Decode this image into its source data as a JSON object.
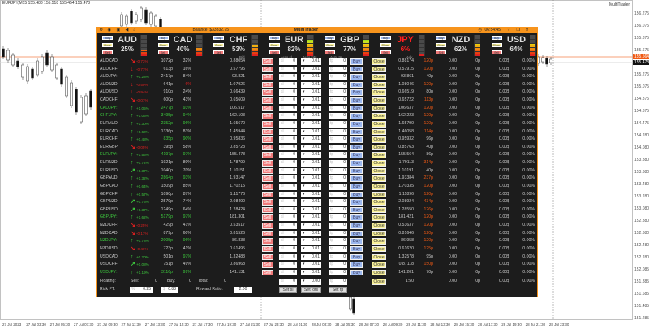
{
  "chart": {
    "symbol_line": "EURJPY,M15  155.488 155.518 155.454 155.478",
    "indicator_label": "MultiTrader",
    "ask_price_tag": "155.564",
    "bid_price_tag": "155.478",
    "price_labels": [
      "156.275",
      "156.075",
      "155.875",
      "155.675",
      "155.275",
      "155.075",
      "154.875",
      "154.675",
      "154.475",
      "154.280",
      "154.080",
      "153.880",
      "153.680",
      "153.480",
      "153.280",
      "153.080",
      "152.880",
      "152.680",
      "152.480",
      "152.280",
      "152.085",
      "151.885",
      "151.685",
      "151.485",
      "151.285"
    ],
    "time_labels": [
      "27 Jul 2023",
      "27 Jul 03:30",
      "27 Jul 05:30",
      "27 Jul 07:30",
      "27 Jul 09:30",
      "27 Jul 11:30",
      "27 Jul 13:30",
      "27 Jul 15:30",
      "27 Jul 17:30",
      "27 Jul 19:30",
      "27 Jul 21:30",
      "27 Jul 23:30",
      "28 Jul 01:30",
      "28 Jul 03:30",
      "28 Jul 05:30",
      "28 Jul 07:30",
      "28 Jul 09:30",
      "28 Jul 11:30",
      "28 Jul 13:30",
      "28 Jul 15:30",
      "28 Jul 17:30",
      "28 Jul 19:30",
      "28 Jul 21:30",
      "28 Jul 23:30"
    ],
    "colors": {
      "ask_line": "#f7a27a",
      "bid_line": "#d8d8d8",
      "ask_tag": "#f05a14",
      "bid_tag": "#111111"
    }
  },
  "panel": {
    "title": "MultiTrader",
    "balance": "Balance: $33332.75",
    "clock": "06:54:45",
    "help": "?",
    "toolbar_icons": [
      "settings-icon",
      "eye-icon",
      "chat-icon",
      "sound-icon",
      "alert-icon"
    ],
    "accent": "#f7941d",
    "mini_buttons": {
      "buy": "Buy",
      "close": "Close",
      "sell": "Sell"
    },
    "currencies": [
      {
        "name": "AUD",
        "level": "25%",
        "value": 25
      },
      {
        "name": "CAD",
        "level": "40%",
        "value": 40
      },
      {
        "name": "CHF",
        "level": "53%",
        "value": 53
      },
      {
        "name": "EUR",
        "level": "82%",
        "value": 82
      },
      {
        "name": "GBP",
        "level": "77%",
        "value": 77
      },
      {
        "name": "JPY",
        "level": "6%",
        "value": 6,
        "weak": true
      },
      {
        "name": "NZD",
        "level": "62%",
        "value": 62
      },
      {
        "name": "USD",
        "level": "64%",
        "value": 64
      }
    ],
    "headers": {
      "bid": "Bid",
      "auto_sl": "Auto sl",
      "auto_lots": "Auto lots",
      "auto_tp": "Auto tp",
      "ask": "Ask"
    },
    "row_defaults": {
      "sell": "Sell",
      "buy": "Buy",
      "close": "Close",
      "sl_ph": "sl",
      "tp_ph": "tp",
      "sl": "0",
      "tp": "0",
      "lots": "0.01",
      "spread_val": "0.00",
      "pos_pips": "0p",
      "profit": "0.00$",
      "profit_pct": "0.00%"
    },
    "rows": [
      {
        "pair": "AUDCAD:",
        "dir": "↘",
        "chg": "-0.73%",
        "pips": "1072p",
        "pct": "32%",
        "bid": "0.88054",
        "ask": "0.88174",
        "spread": "120p",
        "hot": true
      },
      {
        "pair": "AUDCHF:",
        "dir": "↓",
        "chg": "-0.77%",
        "pips": "613p",
        "pct": "16%",
        "bid": "0.57795",
        "ask": "0.57915",
        "spread": "120p",
        "hot": true
      },
      {
        "pair": "AUDJPY:",
        "dir": "↑",
        "chg": "+0.28%",
        "pips": "2417p",
        "pct": "84%",
        "bid": "93.821",
        "ask": "93.861",
        "spread": "40p"
      },
      {
        "pair": "AUDNZD:",
        "dir": "↓",
        "chg": "-0.50%",
        "pips": "641p",
        "pct": "6%",
        "pct_low": true,
        "bid": "1.07926",
        "ask": "1.08046",
        "spread": "120p",
        "hot": true
      },
      {
        "pair": "AUDUSD:",
        "dir": "↓",
        "chg": "-0.94%",
        "pips": "910p",
        "pct": "24%",
        "bid": "0.66439",
        "ask": "0.66519",
        "spread": "80p"
      },
      {
        "pair": "CADCHF:",
        "dir": "↘",
        "chg": "-0.07%",
        "pips": "600p",
        "pct": "43%",
        "bid": "0.65609",
        "ask": "0.65722",
        "spread": "113p",
        "hot": true
      },
      {
        "pair": "CADJPY:",
        "dir": "↑",
        "chg": "+1.05%",
        "pips": "2477p",
        "pct": "93%",
        "bid": "106.517",
        "ask": "106.637",
        "spread": "120p",
        "hot": true,
        "strong": true,
        "pips_hi": true,
        "pct_hi": true
      },
      {
        "pair": "CHFJPY:",
        "dir": "↑",
        "chg": "+1.06%",
        "pips": "3495p",
        "pct": "94%",
        "bid": "162.103",
        "ask": "162.223",
        "spread": "120p",
        "hot": true,
        "strong": true,
        "pips_hi": true,
        "pct_hi": true
      },
      {
        "pair": "EURAUD:",
        "dir": "↑",
        "chg": "+1.30%",
        "pips": "2352p",
        "pct": "96%",
        "bid": "1.65670",
        "ask": "1.65790",
        "spread": "120p",
        "hot": true,
        "pips_hi": true,
        "pct_hi": true
      },
      {
        "pair": "EURCAD:",
        "dir": "↑",
        "chg": "+0.60%",
        "pips": "1336p",
        "pct": "83%",
        "bid": "1.45944",
        "ask": "1.46058",
        "spread": "114p",
        "hot": true
      },
      {
        "pair": "EURCHF:",
        "dir": "↑",
        "chg": "+0.48%",
        "pips": "835p",
        "pct": "90%",
        "bid": "0.95836",
        "ask": "0.95932",
        "spread": "96p",
        "pips_hi": true,
        "pct_hi": true
      },
      {
        "pair": "EURGBP:",
        "dir": "↘",
        "chg": "-0.05%",
        "pips": "395p",
        "pct": "58%",
        "bid": "0.85723",
        "ask": "0.85763",
        "spread": "40p"
      },
      {
        "pair": "EURJPY:",
        "dir": "↑",
        "chg": "+1.56%",
        "pips": "4197p",
        "pct": "97%",
        "bid": "155.478",
        "ask": "155.564",
        "spread": "86p",
        "strong": true,
        "pips_hi": true,
        "pct_hi": true
      },
      {
        "pair": "EURNZD:",
        "dir": "↑",
        "chg": "+0.72%",
        "pips": "1921p",
        "pct": "80%",
        "bid": "1.78799",
        "ask": "1.79113",
        "spread": "314p",
        "hot": true
      },
      {
        "pair": "EURUSD:",
        "dir": "↗",
        "chg": "+0.37%",
        "pips": "1040p",
        "pct": "70%",
        "bid": "1.10151",
        "ask": "1.10191",
        "spread": "40p"
      },
      {
        "pair": "GBPAUD:",
        "dir": "↑",
        "chg": "+1.32%",
        "pips": "2864p",
        "pct": "93%",
        "bid": "1.93147",
        "ask": "1.93384",
        "spread": "237p",
        "hot": true,
        "pips_hi": true,
        "pct_hi": true
      },
      {
        "pair": "GBPCAD:",
        "dir": "↑",
        "chg": "+0.64%",
        "pips": "1509p",
        "pct": "85%",
        "bid": "1.70215",
        "ask": "1.70335",
        "spread": "120p",
        "hot": true
      },
      {
        "pair": "GBPCHF:",
        "dir": "↑",
        "chg": "+0.57%",
        "pips": "1090p",
        "pct": "87%",
        "bid": "1.11776",
        "ask": "1.11896",
        "spread": "120p",
        "hot": true
      },
      {
        "pair": "GBPNZD:",
        "dir": "↗",
        "chg": "+0.76%",
        "pips": "2579p",
        "pct": "74%",
        "bid": "2.08490",
        "ask": "2.08924",
        "spread": "434p",
        "hot": true
      },
      {
        "pair": "GBPUSD:",
        "dir": "↗",
        "chg": "+0.37%",
        "pips": "1249p",
        "pct": "64%",
        "bid": "1.28424",
        "ask": "1.28550",
        "spread": "126p",
        "hot": true
      },
      {
        "pair": "GBPJPY:",
        "dir": "↑",
        "chg": "+1.62%",
        "pips": "5179p",
        "pct": "97%",
        "bid": "181.301",
        "ask": "181.421",
        "spread": "120p",
        "hot": true,
        "strong": true,
        "pips_hi": true,
        "pct_hi": true
      },
      {
        "pair": "NZDCHF:",
        "dir": "↘",
        "chg": "-0.25%",
        "pips": "429p",
        "pct": "41%",
        "bid": "0.53517",
        "ask": "0.53637",
        "spread": "120p",
        "hot": true
      },
      {
        "pair": "NZDCAD:",
        "dir": "↘",
        "chg": "-0.17%",
        "pips": "879p",
        "pct": "60%",
        "bid": "0.81526",
        "ask": "0.81646",
        "spread": "120p",
        "hot": true
      },
      {
        "pair": "NZDJPY:",
        "dir": "↑",
        "chg": "+0.78%",
        "pips": "2005p",
        "pct": "96%",
        "bid": "86.838",
        "ask": "86.958",
        "spread": "120p",
        "hot": true,
        "strong": true,
        "pips_hi": true,
        "pct_hi": true
      },
      {
        "pair": "NZDUSD:",
        "dir": "↘",
        "chg": "-0.46%",
        "pips": "723p",
        "pct": "41%",
        "bid": "0.61495",
        "ask": "0.61620",
        "spread": "125p",
        "hot": true
      },
      {
        "pair": "USDCAD:",
        "dir": "↑",
        "chg": "+0.20%",
        "pips": "501p",
        "pct": "97%",
        "bid": "1.32483",
        "ask": "1.32578",
        "spread": "95p",
        "pct_hi": true
      },
      {
        "pair": "USDCHF:",
        "dir": "↗",
        "chg": "+0.08%",
        "pips": "751p",
        "pct": "49%",
        "bid": "0.86968",
        "ask": "0.87118",
        "spread": "150p",
        "hot": true
      },
      {
        "pair": "USDJPY:",
        "dir": "↑",
        "chg": "+1.19%",
        "pips": "3116p",
        "pct": "99%",
        "bid": "141.131",
        "ask": "141.201",
        "spread": "70p",
        "strong": true,
        "pips_hi": true,
        "pct_hi": true
      }
    ],
    "footer": {
      "floating": "Floating:",
      "sell_label": "Sell:",
      "sell_val": "0",
      "buy_label": "Buy:",
      "buy_val": "0",
      "total_label": "Total:",
      "total_val": "0",
      "sl_ph": "sl",
      "sl": "0",
      "lots": "0.00",
      "tp_ph": "tp",
      "tp": "0",
      "close": "Close",
      "ratio": "1:50",
      "spread_val": "0.00",
      "pos_pips": "0p",
      "profit": "0.00$",
      "profit_pct": "0.00%",
      "risk_label": "Risk PT:",
      "risk_pct_ph": "%",
      "risk_pct": "0.25",
      "risk_usd_ph": "$",
      "risk_usd": "0.83",
      "reward_label": "Reward Ratio:",
      "reward": "2.00",
      "set_sl": "Set sl",
      "set_lots": "Set lots",
      "set_tp": "Set tp"
    }
  }
}
